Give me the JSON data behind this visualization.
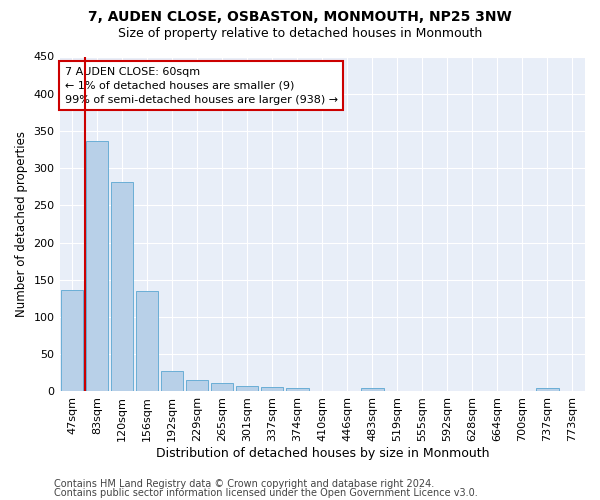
{
  "title1": "7, AUDEN CLOSE, OSBASTON, MONMOUTH, NP25 3NW",
  "title2": "Size of property relative to detached houses in Monmouth",
  "xlabel": "Distribution of detached houses by size in Monmouth",
  "ylabel": "Number of detached properties",
  "categories": [
    "47sqm",
    "83sqm",
    "120sqm",
    "156sqm",
    "192sqm",
    "229sqm",
    "265sqm",
    "301sqm",
    "337sqm",
    "374sqm",
    "410sqm",
    "446sqm",
    "483sqm",
    "519sqm",
    "555sqm",
    "592sqm",
    "628sqm",
    "664sqm",
    "700sqm",
    "737sqm",
    "773sqm"
  ],
  "values": [
    136,
    336,
    281,
    135,
    27,
    16,
    12,
    8,
    6,
    4,
    0,
    0,
    5,
    0,
    0,
    0,
    0,
    0,
    0,
    4,
    0
  ],
  "bar_color": "#b8d0e8",
  "bar_edge_color": "#6aaed6",
  "highlight_color": "#cc0000",
  "annotation_line1": "7 AUDEN CLOSE: 60sqm",
  "annotation_line2": "← 1% of detached houses are smaller (9)",
  "annotation_line3": "99% of semi-detached houses are larger (938) →",
  "annotation_box_color": "#ffffff",
  "annotation_box_edge": "#cc0000",
  "ylim": [
    0,
    450
  ],
  "yticks": [
    0,
    50,
    100,
    150,
    200,
    250,
    300,
    350,
    400,
    450
  ],
  "bg_color": "#e8eef8",
  "footer1": "Contains HM Land Registry data © Crown copyright and database right 2024.",
  "footer2": "Contains public sector information licensed under the Open Government Licence v3.0.",
  "title1_fontsize": 10,
  "title2_fontsize": 9,
  "xlabel_fontsize": 9,
  "ylabel_fontsize": 8.5,
  "tick_fontsize": 8,
  "annotation_fontsize": 8,
  "footer_fontsize": 7
}
